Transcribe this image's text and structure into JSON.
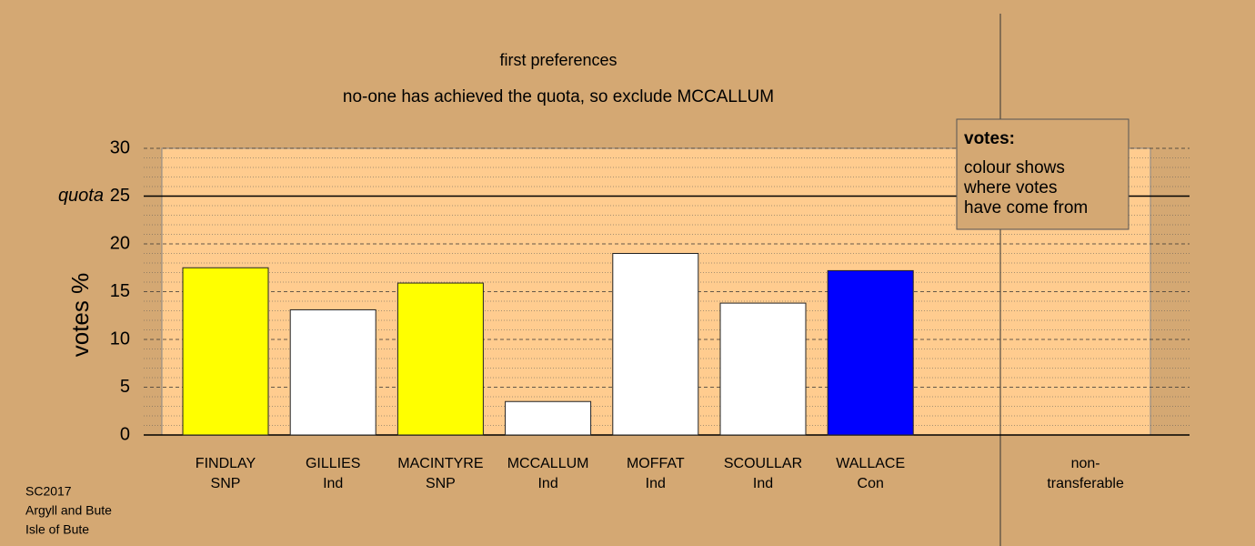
{
  "chart_data": {
    "type": "bar",
    "title": "first preferences",
    "subtitle": "no-one has achieved the quota, so exclude MCCALLUM",
    "y_label": "votes %",
    "categories": [
      "FINDLAY",
      "GILLIES",
      "MACINTYRE",
      "MCCALLUM",
      "MOFFAT",
      "SCOULLAR",
      "WALLACE",
      "non-"
    ],
    "subcategories": [
      "SNP",
      "Ind",
      "SNP",
      "Ind",
      "Ind",
      "Ind",
      "Con",
      "transferable"
    ],
    "values": [
      17.5,
      13.1,
      15.9,
      3.5,
      19.0,
      13.8,
      17.2,
      null
    ],
    "colors": [
      "#ffff00",
      "#ffffff",
      "#ffff00",
      "#ffffff",
      "#ffffff",
      "#ffffff",
      "#0000ff",
      null
    ],
    "ylim": [
      0,
      30
    ],
    "yticks": [
      0,
      5,
      10,
      15,
      20,
      25,
      30
    ],
    "grid": true,
    "quota": {
      "label": "quota",
      "value": 25
    },
    "legend": {
      "title": "votes:",
      "lines": [
        "colour shows",
        "where votes",
        "have come from"
      ]
    },
    "footer": [
      "SC2017",
      "Argyll and Bute",
      "Isle of Bute"
    ]
  }
}
